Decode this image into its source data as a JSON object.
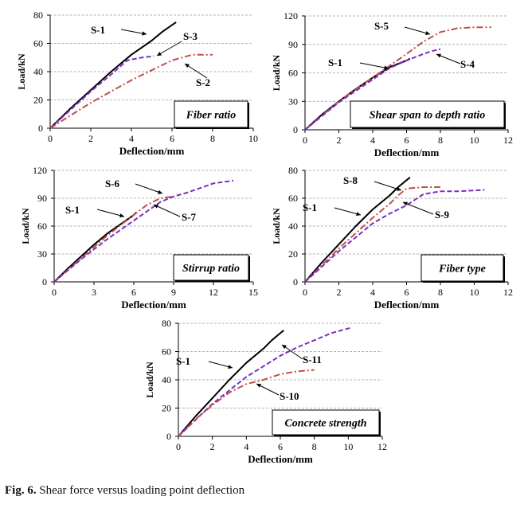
{
  "figure": {
    "caption_label": "Fig. 6.",
    "caption_text": " Shear force versus loading point deflection"
  },
  "colors": {
    "black": "#000000",
    "purple": "#7b2fbf",
    "red": "#c0504d",
    "grid": "#9a9a9a"
  },
  "chart_data": [
    {
      "type": "line",
      "panel_label": "Fiber ratio",
      "xlabel": "Deflection/mm",
      "ylabel": "Load/kN",
      "xlim": [
        0,
        10
      ],
      "ylim": [
        0,
        80
      ],
      "xticks": [
        0,
        2,
        4,
        6,
        8,
        10
      ],
      "yticks": [
        0,
        20,
        40,
        60,
        80
      ],
      "grid": "horizontal dashed",
      "series": [
        {
          "name": "S-1",
          "color": "#000000",
          "dash": "solid",
          "x": [
            0,
            1,
            2,
            3,
            4,
            5,
            5.5,
            6,
            6.2
          ],
          "y": [
            0,
            14,
            27,
            40,
            52,
            62,
            68,
            73,
            75
          ]
        },
        {
          "name": "S-3",
          "color": "#7b2fbf",
          "dash": "dash",
          "x": [
            0,
            1,
            2,
            3,
            3.8,
            4.5,
            5.1
          ],
          "y": [
            0,
            13,
            26,
            38,
            48,
            50,
            51
          ]
        },
        {
          "name": "S-2",
          "color": "#c0504d",
          "dash": "dashdot",
          "x": [
            0,
            1,
            2,
            3,
            4,
            5,
            6,
            7,
            8
          ],
          "y": [
            0,
            9,
            18,
            26,
            34,
            41,
            48,
            52,
            52
          ]
        }
      ]
    },
    {
      "type": "line",
      "panel_label": "Shear span to depth ratio",
      "xlabel": "Deflection/mm",
      "ylabel": "Load/kN",
      "xlim": [
        0,
        12
      ],
      "ylim": [
        0,
        120
      ],
      "xticks": [
        0,
        2,
        4,
        6,
        8,
        10,
        12
      ],
      "yticks": [
        0,
        30,
        60,
        90,
        120
      ],
      "grid": "horizontal dashed",
      "series": [
        {
          "name": "S-1",
          "color": "#000000",
          "dash": "solid",
          "x": [
            0,
            1,
            2,
            3,
            4,
            5,
            6,
            6.2
          ],
          "y": [
            0,
            16,
            30,
            43,
            55,
            66,
            73,
            75
          ]
        },
        {
          "name": "S-5",
          "color": "#c0504d",
          "dash": "dashdot",
          "x": [
            0,
            2,
            4,
            6,
            7,
            8,
            9,
            10,
            11
          ],
          "y": [
            0,
            30,
            55,
            80,
            93,
            103,
            107,
            108,
            108
          ]
        },
        {
          "name": "S-4",
          "color": "#7b2fbf",
          "dash": "dash",
          "x": [
            0,
            2,
            4,
            5,
            6,
            7,
            7.5,
            8
          ],
          "y": [
            0,
            29,
            53,
            65,
            73,
            80,
            83,
            85
          ]
        }
      ]
    },
    {
      "type": "line",
      "panel_label": "Stirrup ratio",
      "xlabel": "Deflection/mm",
      "ylabel": "Load/kN",
      "xlim": [
        0,
        15
      ],
      "ylim": [
        0,
        120
      ],
      "xticks": [
        0,
        3,
        6,
        9,
        12,
        15
      ],
      "yticks": [
        0,
        30,
        60,
        90,
        120
      ],
      "grid": "horizontal dashed",
      "series": [
        {
          "name": "S-1",
          "color": "#000000",
          "dash": "solid",
          "x": [
            0,
            1,
            2,
            3,
            4,
            5,
            6,
            6.2
          ],
          "y": [
            0,
            14,
            27,
            40,
            52,
            62,
            72,
            75
          ]
        },
        {
          "name": "S-6",
          "color": "#c0504d",
          "dash": "dashdot",
          "x": [
            0,
            2,
            4,
            6,
            7,
            8,
            9
          ],
          "y": [
            0,
            25,
            50,
            72,
            83,
            90,
            92
          ]
        },
        {
          "name": "S-7",
          "color": "#7b2fbf",
          "dash": "dash",
          "x": [
            0,
            2,
            4,
            6,
            7,
            8,
            9,
            10,
            11,
            12,
            13.5
          ],
          "y": [
            0,
            24,
            46,
            66,
            76,
            86,
            92,
            96,
            101,
            106,
            109
          ]
        }
      ]
    },
    {
      "type": "line",
      "panel_label": "Fiber type",
      "xlabel": "Deflection/mm",
      "ylabel": "Load/kN",
      "xlim": [
        0,
        12
      ],
      "ylim": [
        0,
        80
      ],
      "xticks": [
        0,
        2,
        4,
        6,
        8,
        10,
        12
      ],
      "yticks": [
        0,
        20,
        40,
        60,
        80
      ],
      "grid": "horizontal dashed",
      "series": [
        {
          "name": "S-1",
          "color": "#000000",
          "dash": "solid",
          "x": [
            0,
            1,
            2,
            3,
            4,
            5,
            5.5,
            6,
            6.2
          ],
          "y": [
            0,
            14,
            27,
            40,
            52,
            62,
            68,
            73,
            75
          ]
        },
        {
          "name": "S-8",
          "color": "#c0504d",
          "dash": "dashdot",
          "x": [
            0,
            1,
            2,
            3,
            4,
            5,
            5.5,
            6,
            7,
            8
          ],
          "y": [
            0,
            12,
            24,
            35,
            46,
            56,
            62,
            67,
            68,
            68
          ]
        },
        {
          "name": "S-9",
          "color": "#7b2fbf",
          "dash": "dash",
          "x": [
            0,
            1,
            2,
            3,
            4,
            5,
            6,
            7,
            8,
            9,
            10.6
          ],
          "y": [
            0,
            11,
            22,
            32,
            42,
            49,
            55,
            63,
            65,
            65,
            66
          ]
        }
      ]
    },
    {
      "type": "line",
      "panel_label": "Concrete strength",
      "xlabel": "Deflection/mm",
      "ylabel": "Load/kN",
      "xlim": [
        0,
        12
      ],
      "ylim": [
        0,
        80
      ],
      "xticks": [
        0,
        2,
        4,
        6,
        8,
        10,
        12
      ],
      "yticks": [
        0,
        20,
        40,
        60,
        80
      ],
      "grid": "horizontal dashed",
      "series": [
        {
          "name": "S-1",
          "color": "#000000",
          "dash": "solid",
          "x": [
            0,
            1,
            2,
            3,
            4,
            5,
            5.5,
            6,
            6.2
          ],
          "y": [
            0,
            14,
            27,
            40,
            52,
            62,
            68,
            73,
            75
          ]
        },
        {
          "name": "S-11",
          "color": "#7b2fbf",
          "dash": "dash",
          "x": [
            0,
            2,
            4,
            6,
            7,
            8,
            9,
            10.2
          ],
          "y": [
            0,
            23,
            42,
            57,
            63,
            68,
            73,
            77
          ]
        },
        {
          "name": "S-10",
          "color": "#c0504d",
          "dash": "dashdot",
          "x": [
            0,
            1,
            2,
            3,
            4,
            5,
            6,
            7,
            8
          ],
          "y": [
            0,
            12,
            22,
            31,
            37,
            40,
            44,
            46,
            47
          ]
        }
      ]
    }
  ]
}
